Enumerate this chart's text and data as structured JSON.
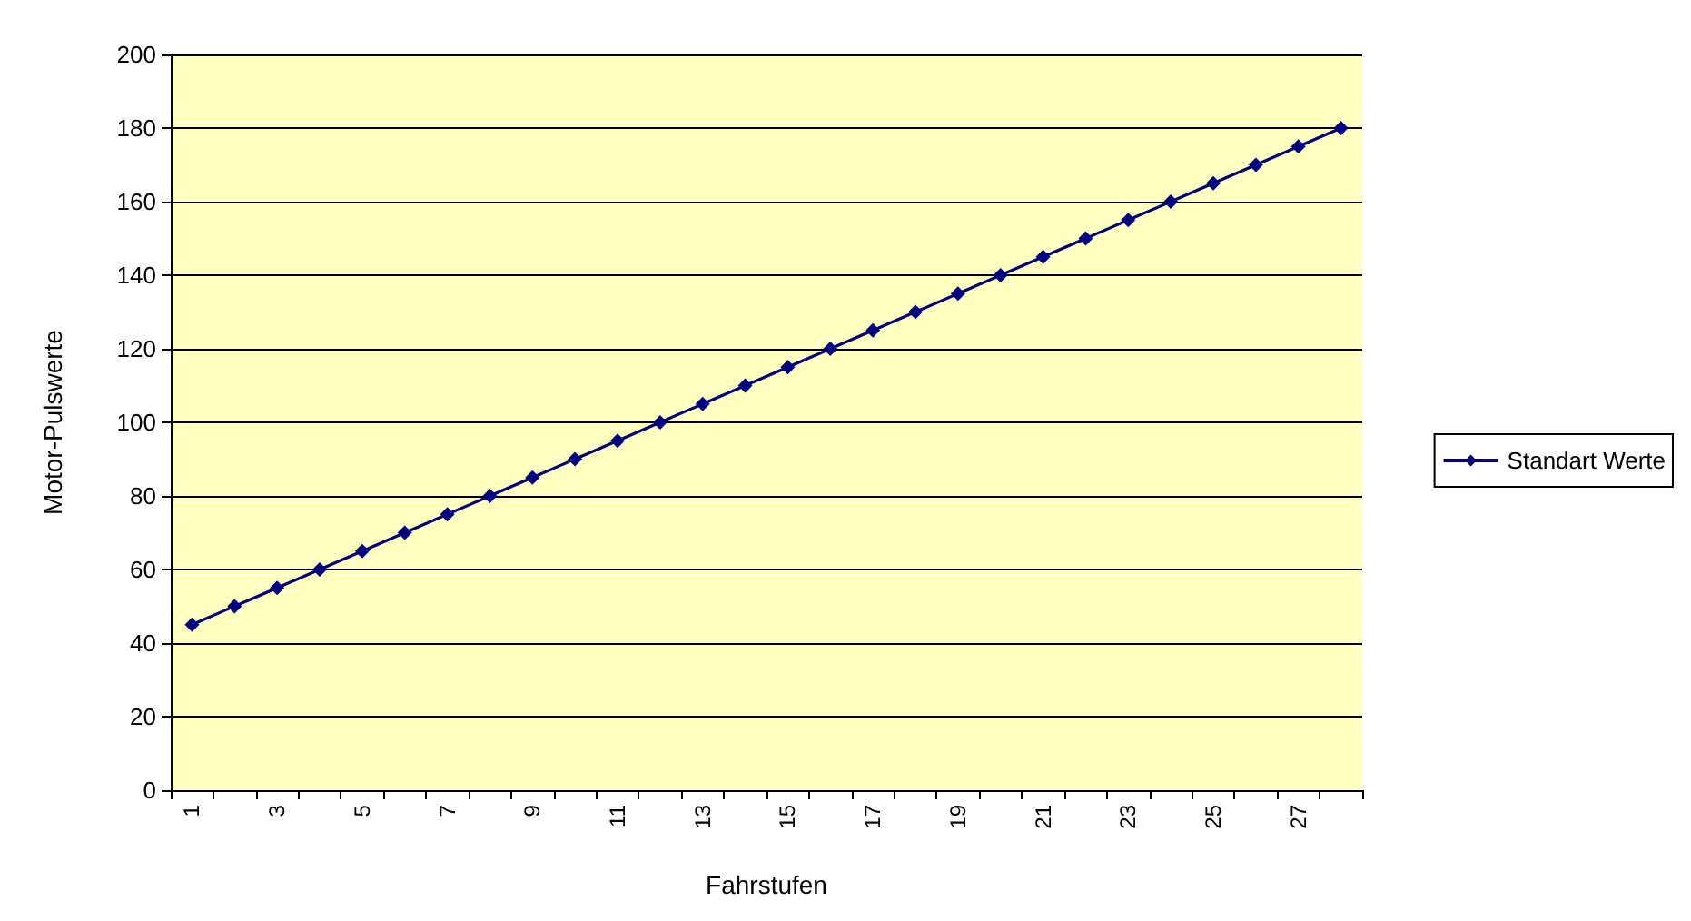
{
  "chart_data": {
    "type": "line",
    "xlabel": "Fahrstufen",
    "ylabel": "Motor-Pulswerte",
    "categories": [
      "1",
      null,
      "3",
      null,
      "5",
      null,
      "7",
      null,
      "9",
      null,
      "11",
      null,
      "13",
      null,
      "15",
      null,
      "17",
      null,
      "19",
      null,
      "21",
      null,
      "23",
      null,
      "25",
      null,
      "27",
      null
    ],
    "series": [
      {
        "name": "Standart Werte",
        "color": "#000080",
        "values": [
          45,
          50,
          55,
          60,
          65,
          70,
          75,
          80,
          85,
          90,
          95,
          100,
          105,
          110,
          115,
          120,
          125,
          130,
          135,
          140,
          145,
          150,
          155,
          160,
          165,
          170,
          175,
          180
        ]
      }
    ],
    "ylim": [
      0,
      200
    ],
    "yticks": [
      0,
      20,
      40,
      60,
      80,
      100,
      120,
      140,
      160,
      180,
      200
    ],
    "grid": "y",
    "legend": "right",
    "marker": "diamond",
    "line_style": "solid"
  }
}
